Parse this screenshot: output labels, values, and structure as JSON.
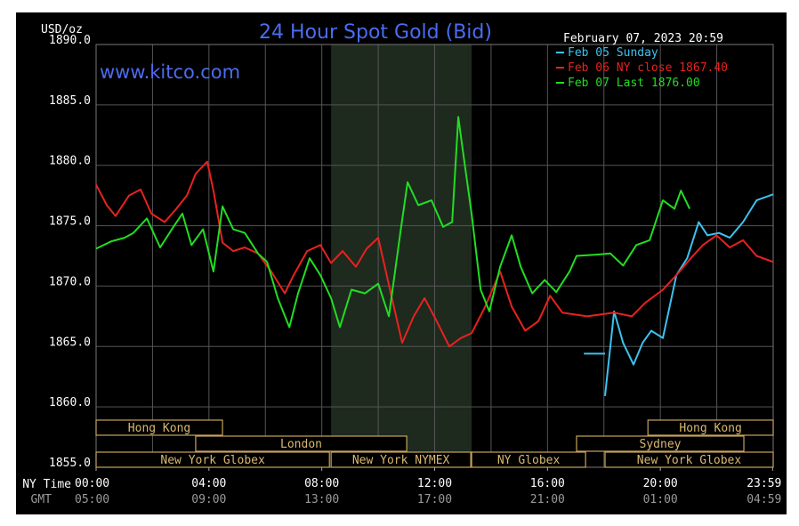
{
  "chart_data": {
    "type": "line",
    "title": "24 Hour Spot Gold (Bid)",
    "y_label": "USD/oz",
    "timestamp": "February 07, 2023 20:59",
    "watermark": "www.kitco.com",
    "x_label": "NY Time",
    "x2_label": "GMT",
    "xlim": [
      0,
      24
    ],
    "ylim": [
      1855,
      1890
    ],
    "xticks": [
      {
        "value": 0,
        "label": "00:00"
      },
      {
        "value": 4,
        "label": "04:00"
      },
      {
        "value": 8,
        "label": "08:00"
      },
      {
        "value": 12,
        "label": "12:00"
      },
      {
        "value": 16,
        "label": "16:00"
      },
      {
        "value": 20,
        "label": "20:00"
      },
      {
        "value": 23.98,
        "label": "23:59"
      }
    ],
    "gmt_labels": [
      "05:00",
      "09:00",
      "13:00",
      "17:00",
      "21:00",
      "01:00",
      "04:59"
    ],
    "xgrid": [
      2,
      4,
      6,
      8,
      10,
      12,
      14,
      16,
      18,
      20,
      22
    ],
    "yticks": [
      {
        "value": 1855,
        "label": "1855.0"
      },
      {
        "value": 1860,
        "label": "1860.0"
      },
      {
        "value": 1865,
        "label": "1865.0"
      },
      {
        "value": 1870,
        "label": "1870.0"
      },
      {
        "value": 1875,
        "label": "1875.0"
      },
      {
        "value": 1880,
        "label": "1880.0"
      },
      {
        "value": 1885,
        "label": "1885.0"
      },
      {
        "value": 1890,
        "label": "1890.0"
      }
    ],
    "grid": true,
    "legend": "top-right",
    "shade": [
      8.33,
      13.31
    ],
    "series": [
      {
        "name": "Feb 05 Sunday",
        "color": "#3cc3f0",
        "x": [
          17.29,
          18.04,
          18.04,
          18.04,
          18.36,
          18.68,
          19.05,
          19.37,
          19.68,
          20.09,
          20.57,
          20.95,
          21.36,
          21.67,
          22.08,
          22.46,
          22.93,
          23.41,
          24
        ],
        "values": [
          1864.4,
          1864.4,
          null,
          1860.9,
          1867.9,
          1865.3,
          1863.5,
          1865.3,
          1866.3,
          1865.7,
          1870.9,
          1872.3,
          1875.3,
          1874.2,
          1874.4,
          1874,
          1875.3,
          1877.1,
          1877.6
        ]
      },
      {
        "name": "Feb 06 NY close 1867.40",
        "color": "#e8221e",
        "x": [
          0,
          0.38,
          0.69,
          1.17,
          1.58,
          1.96,
          2.43,
          2.84,
          3.22,
          3.53,
          3.94,
          4.16,
          4.48,
          4.86,
          5.27,
          5.74,
          6.21,
          6.69,
          7.0,
          7.48,
          7.95,
          8.33,
          8.74,
          9.21,
          9.59,
          10.0,
          10.38,
          10.85,
          11.26,
          11.64,
          12.05,
          12.52,
          12.93,
          13.31,
          13.79,
          14.32,
          14.73,
          15.21,
          15.68,
          16.09,
          16.53,
          17.41,
          18.36,
          18.99,
          19.46,
          20.09,
          20.57,
          21.04,
          21.51,
          21.99,
          22.46,
          22.93,
          23.41,
          24
        ],
        "values": [
          1878.4,
          1876.7,
          1875.8,
          1877.5,
          1878,
          1876,
          1875.3,
          1876.4,
          1877.5,
          1879.3,
          1880.3,
          1877.9,
          1873.6,
          1872.9,
          1873.2,
          1872.7,
          1871.2,
          1869.4,
          1870.9,
          1872.9,
          1873.4,
          1871.9,
          1872.9,
          1871.6,
          1873.1,
          1874,
          1870.1,
          1865.3,
          1867.5,
          1869,
          1867.2,
          1865,
          1865.7,
          1866.1,
          1868.3,
          1871.2,
          1868.3,
          1866.3,
          1867.1,
          1869.2,
          1867.8,
          1867.5,
          1867.8,
          1867.5,
          1868.6,
          1869.7,
          1870.9,
          1872.2,
          1873.4,
          1874.2,
          1873.2,
          1873.8,
          1872.5,
          1872
        ]
      },
      {
        "name": "Feb 07 Last 1876.00",
        "color": "#22dd22",
        "x": [
          0,
          0.54,
          1.01,
          1.32,
          1.8,
          2.27,
          2.74,
          3.06,
          3.38,
          3.79,
          4.16,
          4.48,
          4.86,
          5.27,
          5.74,
          6.06,
          6.44,
          6.85,
          7.16,
          7.57,
          7.95,
          8.33,
          8.64,
          9.05,
          9.53,
          10.0,
          10.38,
          10.79,
          11.04,
          11.42,
          11.89,
          12.3,
          12.62,
          12.84,
          13.0,
          13.31,
          13.63,
          13.94,
          14.32,
          14.73,
          15.05,
          15.46,
          15.9,
          16.31,
          16.78,
          17.03,
          17.73,
          18.23,
          18.68,
          19.15,
          19.62,
          20.09,
          20.5,
          20.73,
          21.04
        ],
        "values": [
          1873.1,
          1873.7,
          1874,
          1874.4,
          1875.6,
          1873.2,
          1874.9,
          1876,
          1873.4,
          1874.7,
          1871.2,
          1876.6,
          1874.7,
          1874.4,
          1872.7,
          1872,
          1869,
          1866.6,
          1869.4,
          1872.3,
          1870.9,
          1869,
          1866.6,
          1869.7,
          1869.4,
          1870.2,
          1867.5,
          1874.5,
          1878.6,
          1876.7,
          1877.1,
          1874.9,
          1875.3,
          1884,
          1881.2,
          1876,
          1869.7,
          1867.9,
          1871.6,
          1874.2,
          1871.6,
          1869.4,
          1870.5,
          1869.5,
          1871.2,
          1872.5,
          1872.6,
          1872.7,
          1871.7,
          1873.4,
          1873.8,
          1877.1,
          1876.4,
          1877.9,
          1876.4
        ]
      }
    ],
    "sessions": [
      [
        {
          "label": "Hong Kong",
          "start": 0,
          "end": 4.48
        },
        {
          "label": "Hong Kong",
          "start": 19.56,
          "end": 24
        }
      ],
      [
        {
          "label": "London",
          "start": 3.53,
          "end": 11.01
        },
        {
          "label": "Sydney",
          "start": 17.03,
          "end": 22.96
        }
      ],
      [
        {
          "label": "New York Globex",
          "start": 0,
          "end": 8.27
        },
        {
          "label": "New York NYMEX",
          "start": 8.33,
          "end": 13.28
        },
        {
          "label": "NY Globex",
          "start": 13.31,
          "end": 17.35
        },
        {
          "label": "New York Globex",
          "start": 18.04,
          "end": 24
        }
      ]
    ]
  }
}
